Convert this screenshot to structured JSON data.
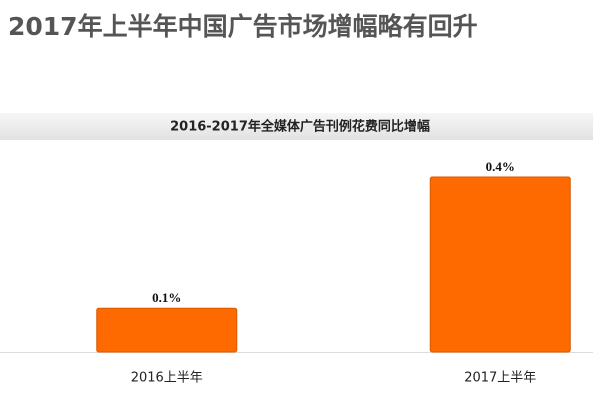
{
  "chart_data": {
    "type": "bar",
    "title": "2017年上半年中国广告市场增幅略有回升",
    "subtitle": "2016-2017年全媒体广告刊例花费同比增幅",
    "categories": [
      "2016上半年",
      "2017上半年"
    ],
    "values": [
      0.1,
      0.4
    ],
    "value_labels": [
      "0.1%",
      "0.4%"
    ],
    "color": "#ff6a00"
  }
}
